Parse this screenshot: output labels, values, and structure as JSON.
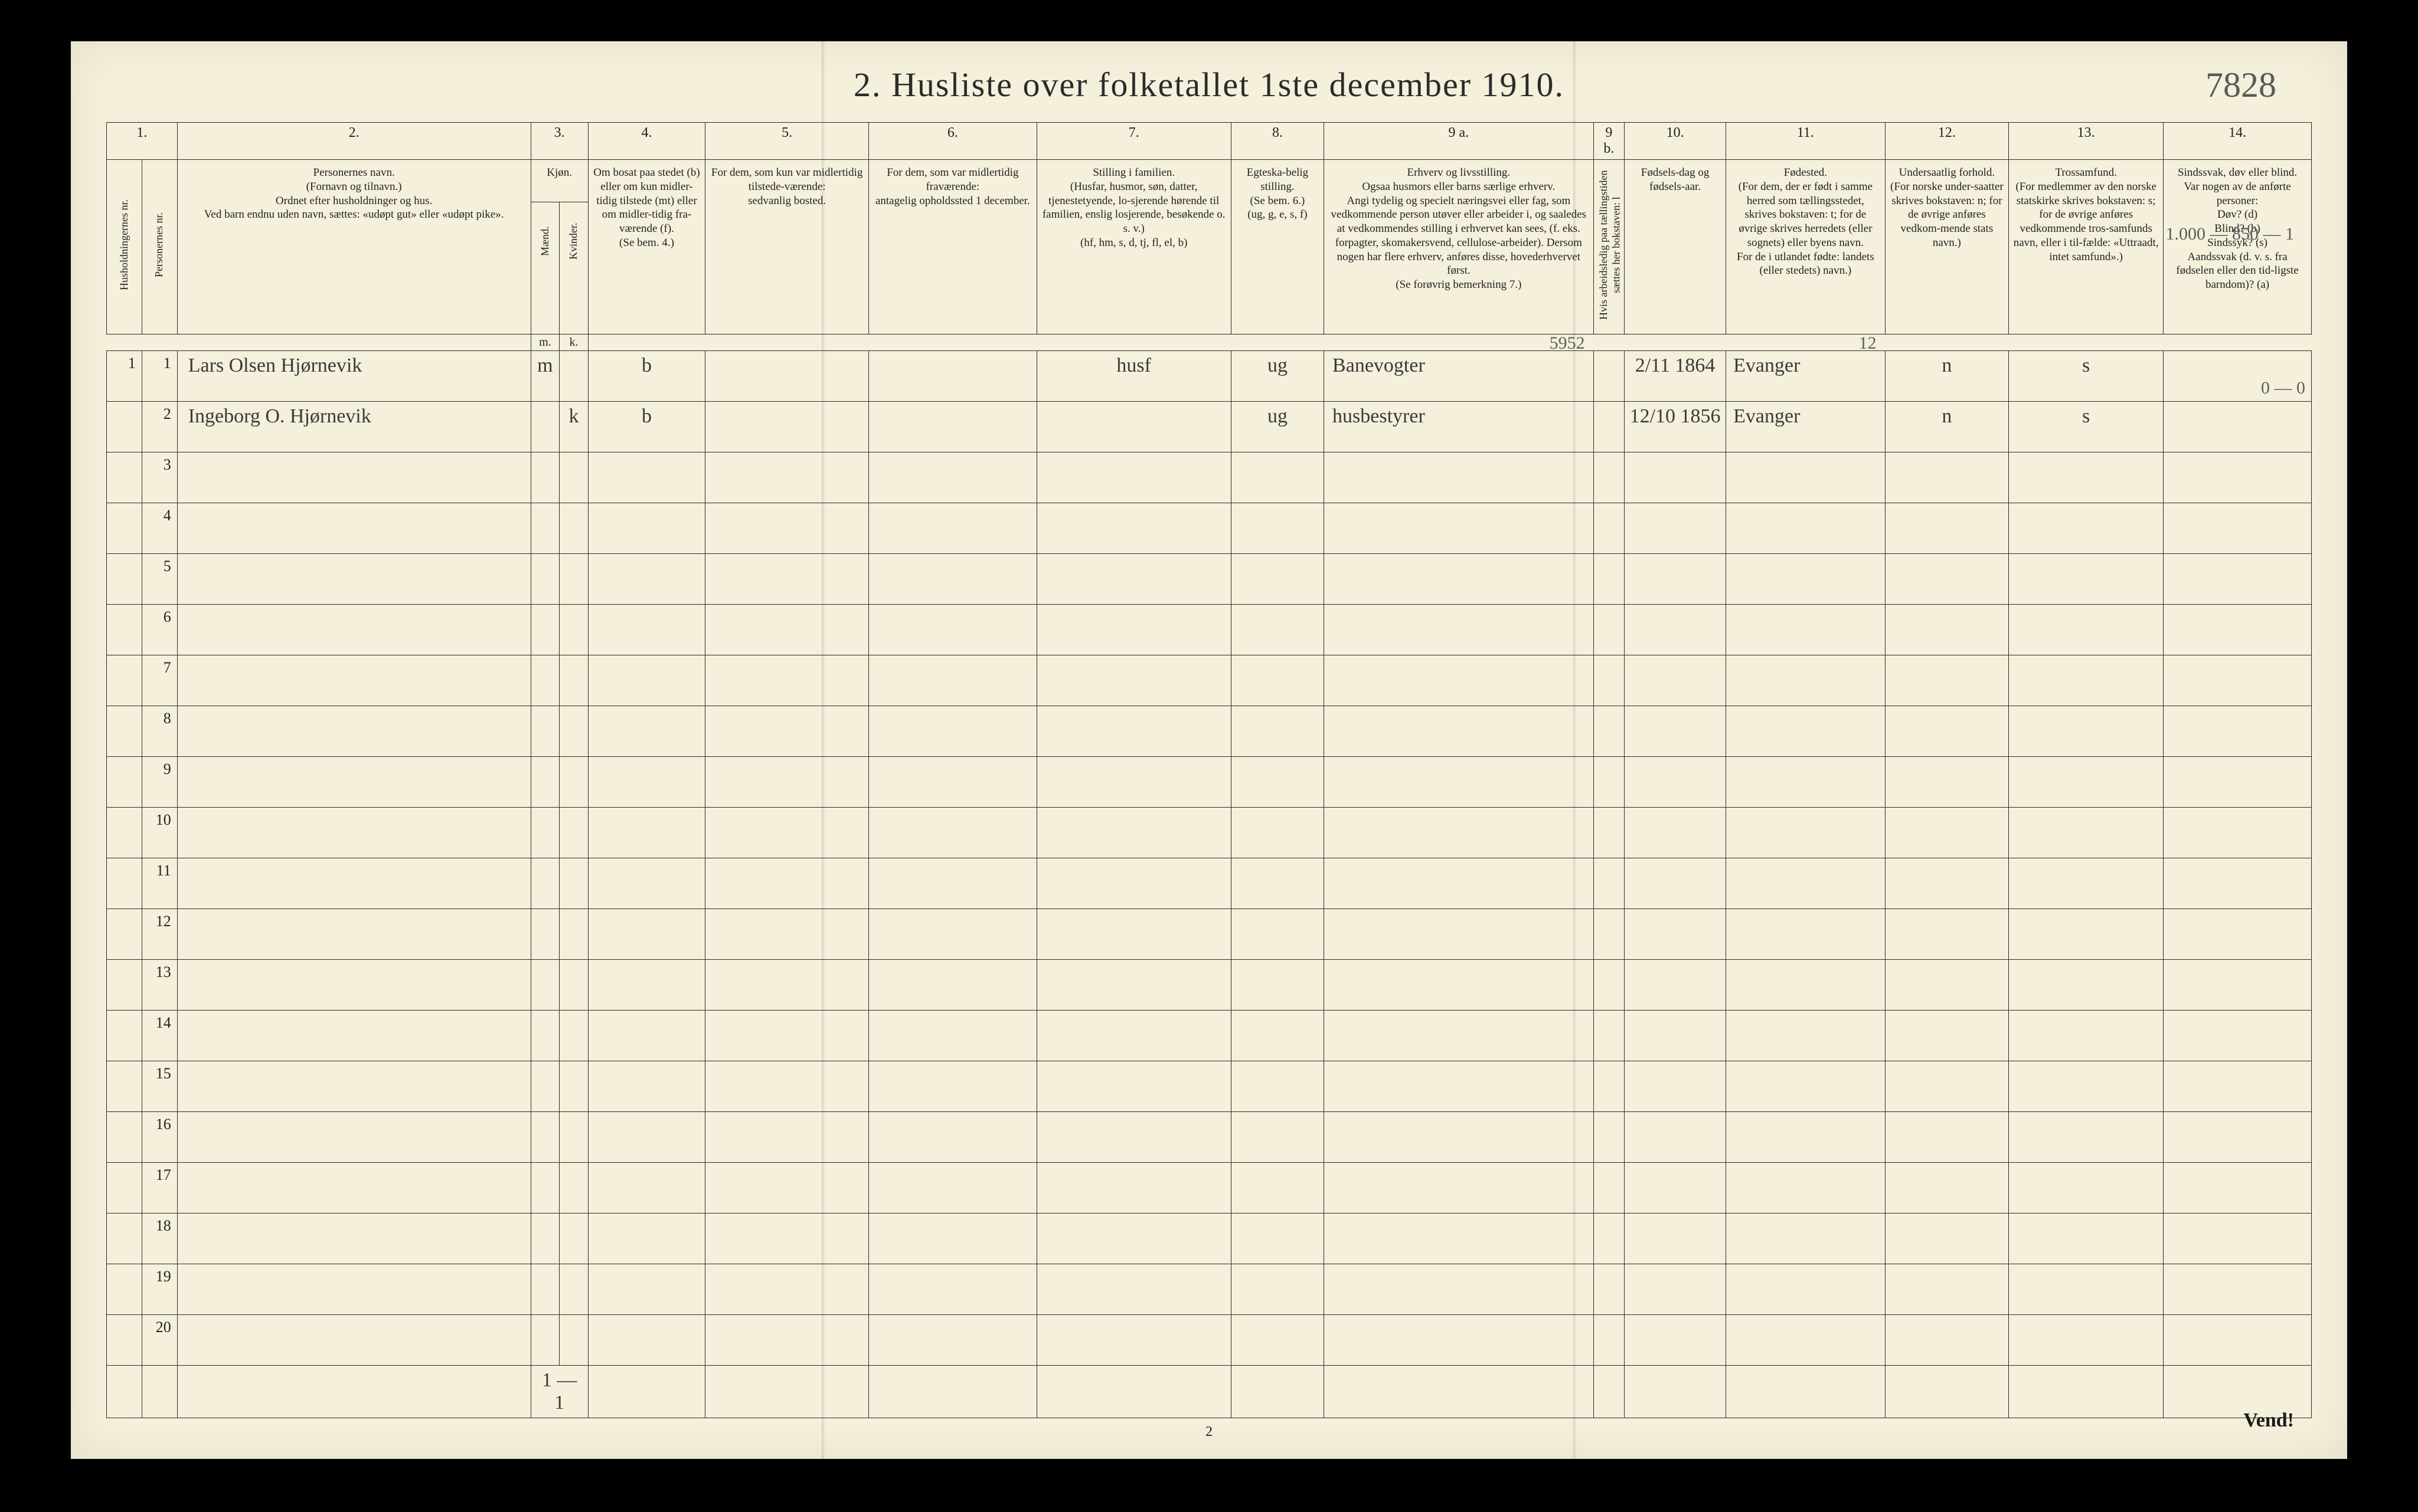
{
  "page": {
    "title": "2.  Husliste over folketallet 1ste december 1910.",
    "top_right_handwritten": "7828",
    "footer_page_number": "2",
    "vend_label": "Vend!",
    "background_color": "#f5f0db",
    "ink_color": "#2b2b2b",
    "handwriting_color": "#3a3a3a",
    "title_fontsize": 58
  },
  "bottom_tally": "1 — 1",
  "margin_notes": {
    "above_row1_col14": "1.000 — 850 — 1",
    "below_row1_col14": "0 — 0",
    "above_row1_col9a": "5952",
    "above_row1_col11": "12"
  },
  "columns": {
    "numbers": [
      "1.",
      "2.",
      "3.",
      "4.",
      "5.",
      "6.",
      "7.",
      "8.",
      "9 a.",
      "9 b.",
      "10.",
      "11.",
      "12.",
      "13.",
      "14."
    ],
    "c1_vert": "Husholdningernes nr.",
    "c1b_vert": "Personernes nr.",
    "c2": "Personernes navn.\n(Fornavn og tilnavn.)\nOrdnet efter husholdninger og hus.\nVed barn endnu uden navn, sættes: «udøpt gut» eller «udøpt pike».",
    "c3": "Kjøn.",
    "c3_sub_m": "Mænd.",
    "c3_sub_k": "Kvinder.",
    "c3_foot_m": "m.",
    "c3_foot_k": "k.",
    "c4": "Om bosat paa stedet (b) eller om kun midler-tidig tilstede (mt) eller om midler-tidig fra-værende (f).\n(Se bem. 4.)",
    "c5": "For dem, som kun var midlertidig tilstede-værende:\nsedvanlig bosted.",
    "c6": "For dem, som var midlertidig fraværende:\nantagelig opholdssted 1 december.",
    "c7": "Stilling i familien.\n(Husfar, husmor, søn, datter, tjenestetyende, lo-sjerende hørende til familien, enslig losjerende, besøkende o. s. v.)\n(hf, hm, s, d, tj, fl, el, b)",
    "c8": "Egteska-belig stilling.\n(Se bem. 6.)\n(ug, g, e, s, f)",
    "c9a": "Erhverv og livsstilling.\nOgsaa husmors eller barns særlige erhverv.\nAngi tydelig og specielt næringsvei eller fag, som vedkommende person utøver eller arbeider i, og saaledes at vedkommendes stilling i erhvervet kan sees, (f. eks. forpagter, skomakersvend, cellulose-arbeider). Dersom nogen har flere erhverv, anføres disse, hovederhvervet først.\n(Se forøvrig bemerkning 7.)",
    "c9b_vert": "Hvis arbeidsledig paa tællingstiden sættes her bokstaven: l",
    "c10": "Fødsels-dag og fødsels-aar.",
    "c11": "Fødested.\n(For dem, der er født i samme herred som tællingsstedet, skrives bokstaven: t; for de øvrige skrives herredets (eller sognets) eller byens navn.\nFor de i utlandet fødte: landets (eller stedets) navn.)",
    "c12": "Undersaatlig forhold.\n(For norske under-saatter skrives bokstaven: n; for de øvrige anføres vedkom-mende stats navn.)",
    "c13": "Trossamfund.\n(For medlemmer av den norske statskirke skrives bokstaven: s; for de øvrige anføres vedkommende tros-samfunds navn, eller i til-fælde: «Uttraadt, intet samfund».)",
    "c14": "Sindssvak, døv eller blind.\nVar nogen av de anførte personer:\nDøv?    (d)\nBlind?   (b)\nSindssyk? (s)\nAandssvak (d. v. s. fra fødselen eller den tid-ligste barndom)?  (a)"
  },
  "rows": [
    {
      "hh": "1",
      "pn": "1",
      "name": "Lars Olsen Hjørnevik",
      "sex_m": "m",
      "sex_k": "",
      "residence": "b",
      "temp_present": "",
      "temp_absent": "",
      "family_pos": "husf",
      "marital": "ug",
      "occupation": "Banevogter",
      "unemployed": "",
      "birth": "2/11 1864",
      "birthplace": "Evanger",
      "nationality": "n",
      "religion": "s",
      "disability": ""
    },
    {
      "hh": "",
      "pn": "2",
      "name": "Ingeborg O. Hjørnevik",
      "sex_m": "",
      "sex_k": "k",
      "residence": "b",
      "temp_present": "",
      "temp_absent": "",
      "family_pos": "",
      "marital": "ug",
      "occupation": "husbestyrer",
      "unemployed": "",
      "birth": "12/10 1856",
      "birthplace": "Evanger",
      "nationality": "n",
      "religion": "s",
      "disability": ""
    }
  ],
  "blank_rows": 18
}
